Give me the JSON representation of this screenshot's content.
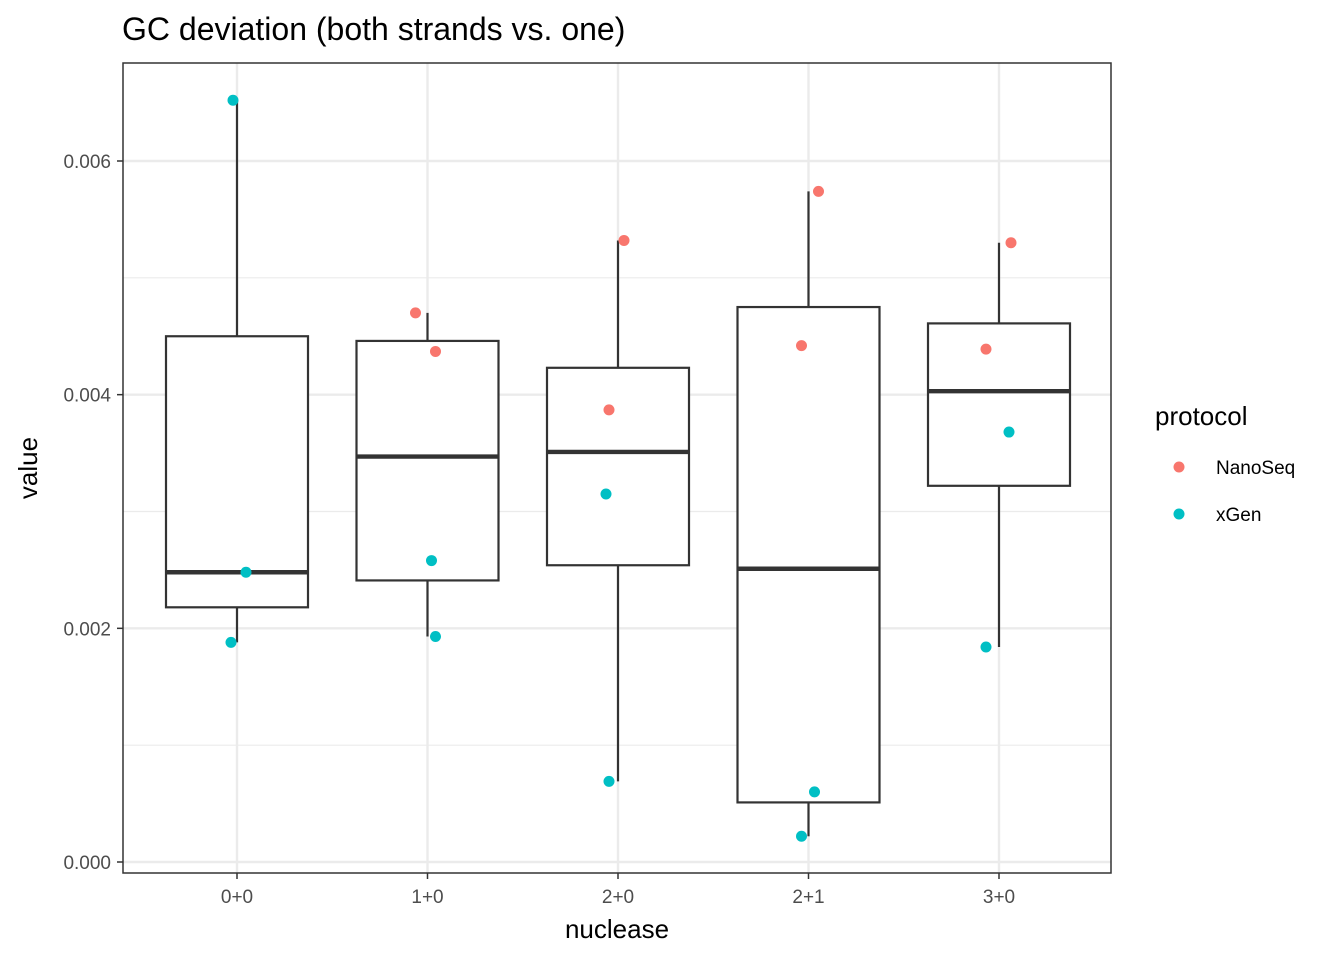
{
  "chart_data": {
    "type": "box",
    "title": "GC deviation (both strands vs. one)",
    "xlabel": "nuclease",
    "ylabel": "value",
    "ylim": [
      -0.0001,
      0.0068
    ],
    "yticks": [
      0.0,
      0.002,
      0.004,
      0.006
    ],
    "ytick_labels": [
      "0.000",
      "0.002",
      "0.004",
      "0.006"
    ],
    "grid": true,
    "legend": {
      "title": "protocol",
      "position": "right",
      "entries": [
        {
          "name": "NanoSeq",
          "color": "#F8766D"
        },
        {
          "name": "xGen",
          "color": "#00BFC4"
        }
      ]
    },
    "categories": [
      "0+0",
      "1+0",
      "2+0",
      "2+1",
      "3+0"
    ],
    "boxes": [
      {
        "category": "0+0",
        "lower_whisker": 0.00188,
        "q1": 0.00218,
        "median": 0.00248,
        "q3": 0.0045,
        "upper_whisker": 0.00652
      },
      {
        "category": "1+0",
        "lower_whisker": 0.00193,
        "q1": 0.00241,
        "median": 0.00347,
        "q3": 0.00446,
        "upper_whisker": 0.0047
      },
      {
        "category": "2+0",
        "lower_whisker": 0.00069,
        "q1": 0.00254,
        "median": 0.00351,
        "q3": 0.00423,
        "upper_whisker": 0.00532
      },
      {
        "category": "2+1",
        "lower_whisker": 0.00022,
        "q1": 0.00051,
        "median": 0.00251,
        "q3": 0.00475,
        "upper_whisker": 0.00574
      },
      {
        "category": "3+0",
        "lower_whisker": 0.00184,
        "q1": 0.00322,
        "median": 0.00403,
        "q3": 0.00461,
        "upper_whisker": 0.0053
      }
    ],
    "series": [
      {
        "name": "NanoSeq",
        "color": "#F8766D",
        "points": [
          {
            "category": "1+0",
            "value": 0.00437
          },
          {
            "category": "1+0",
            "value": 0.0047
          },
          {
            "category": "2+0",
            "value": 0.00387
          },
          {
            "category": "2+0",
            "value": 0.00532
          },
          {
            "category": "2+1",
            "value": 0.00442
          },
          {
            "category": "2+1",
            "value": 0.00574
          },
          {
            "category": "3+0",
            "value": 0.00439
          },
          {
            "category": "3+0",
            "value": 0.0053
          }
        ]
      },
      {
        "name": "xGen",
        "color": "#00BFC4",
        "points": [
          {
            "category": "0+0",
            "value": 0.00652
          },
          {
            "category": "0+0",
            "value": 0.00248
          },
          {
            "category": "0+0",
            "value": 0.00188
          },
          {
            "category": "1+0",
            "value": 0.00258
          },
          {
            "category": "1+0",
            "value": 0.00193
          },
          {
            "category": "2+0",
            "value": 0.00315
          },
          {
            "category": "2+0",
            "value": 0.00069
          },
          {
            "category": "2+1",
            "value": 0.0006
          },
          {
            "category": "2+1",
            "value": 0.00022
          },
          {
            "category": "3+0",
            "value": 0.00368
          },
          {
            "category": "3+0",
            "value": 0.00184
          }
        ]
      }
    ]
  }
}
